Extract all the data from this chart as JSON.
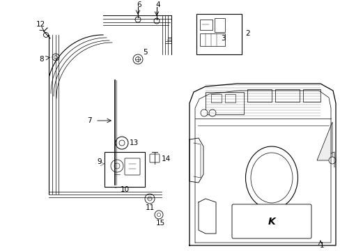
{
  "background_color": "#ffffff",
  "fig_width": 4.89,
  "fig_height": 3.6,
  "dpi": 100,
  "parts_color": "#000000",
  "gray": "#888888",
  "light_gray": "#cccccc"
}
